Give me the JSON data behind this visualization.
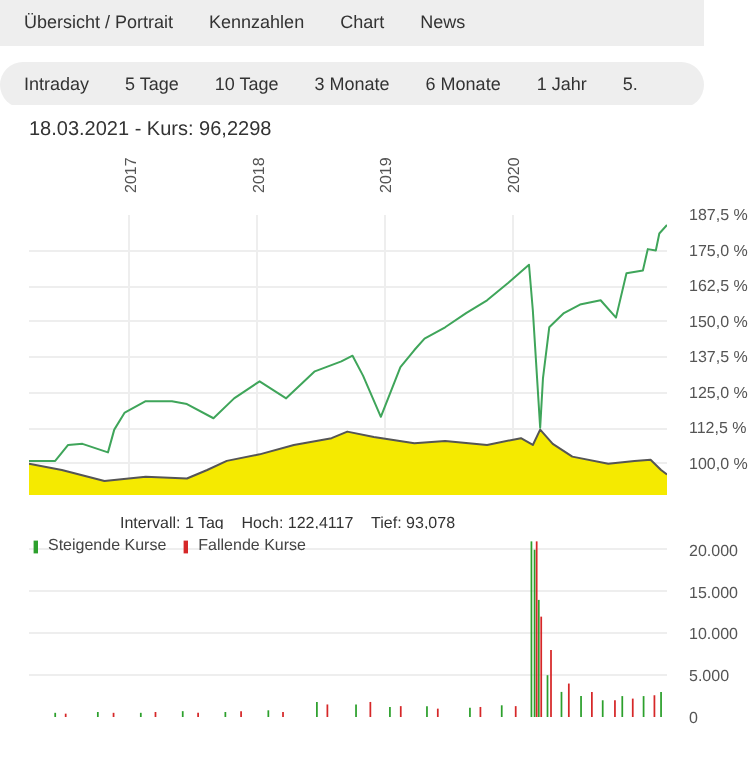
{
  "chart_data": [
    {
      "type": "line",
      "title": "18.03.2021 - Kurs: 96,2298",
      "annotations": [
        "Übersicht / Portrait",
        "Kennzahlen",
        "Chart",
        "News",
        "Intraday",
        "5 Tage",
        "10 Tage",
        "3 Monate",
        "6 Monate",
        "1 Jahr",
        "5."
      ],
      "xlim": [
        "2016-03-18",
        "2021-03-18"
      ],
      "xticks": [
        {
          "value": "2017-01-01",
          "label": "2017"
        },
        {
          "value": "2018-01-01",
          "label": "2018"
        },
        {
          "value": "2019-01-01",
          "label": "2019"
        },
        {
          "value": "2020-01-01",
          "label": "2020"
        }
      ],
      "ylim": [
        89,
        187.5
      ],
      "yticks": [
        {
          "value": 100,
          "label": "100,0 %"
        },
        {
          "value": 112.5,
          "label": "112,5 %"
        },
        {
          "value": 125,
          "label": "125,0 %"
        },
        {
          "value": 137.5,
          "label": "137,5 %"
        },
        {
          "value": 150,
          "label": "150,0 %"
        },
        {
          "value": 162.5,
          "label": "162,5 %"
        },
        {
          "value": 175,
          "label": "175,0 %"
        },
        {
          "value": 187.5,
          "label": "187,5 %"
        }
      ],
      "grid": true,
      "series": [
        {
          "type": "area",
          "color": "#f5ea00",
          "x": [
            "2016-03-18",
            "2016-06-20",
            "2016-10-20",
            "2017-02-15",
            "2017-06-13",
            "2017-08-10",
            "2017-10-05",
            "2018-01-07",
            "2018-04-15",
            "2018-08-01",
            "2018-09-15",
            "2018-11-30",
            "2019-03-26",
            "2019-06-22",
            "2019-10-20",
            "2020-01-25",
            "2020-02-28",
            "2020-03-20",
            "2020-04-25",
            "2020-06-20",
            "2020-10-01",
            "2020-12-15",
            "2021-01-30",
            "2021-03-01",
            "2021-03-18"
          ],
          "values": [
            100,
            97.8,
            93.9,
            95.4,
            94.8,
            97.8,
            101,
            103.3,
            106.6,
            109,
            111.3,
            109.4,
            107.2,
            108,
            106.6,
            109,
            106.6,
            112,
            107,
            102.5,
            100,
            101,
            101.4,
            97.8,
            96.2
          ]
        },
        {
          "type": "line",
          "color": "#3fa55a",
          "x": [
            "2016-03-18",
            "2016-06-01",
            "2016-07-08",
            "2016-08-18",
            "2016-10-30",
            "2016-11-17",
            "2016-12-17",
            "2017-02-15",
            "2017-05-01",
            "2017-06-13",
            "2017-08-28",
            "2017-10-26",
            "2018-01-07",
            "2018-03-24",
            "2018-06-14",
            "2018-08-29",
            "2018-09-30",
            "2018-10-30",
            "2018-12-20",
            "2019-02-14",
            "2019-03-26",
            "2019-04-24",
            "2019-06-22",
            "2019-08-21",
            "2019-10-20",
            "2019-12-20",
            "2020-02-17",
            "2020-02-28",
            "2020-03-20",
            "2020-03-28",
            "2020-04-15",
            "2020-05-27",
            "2020-07-12",
            "2020-09-09",
            "2020-10-23",
            "2020-11-22",
            "2021-01-08",
            "2021-01-22",
            "2021-02-14",
            "2021-02-24",
            "2021-03-18"
          ],
          "values": [
            101,
            101,
            106.6,
            107,
            104,
            112,
            118,
            122,
            122,
            121,
            116,
            123,
            129,
            123,
            132.5,
            136,
            138,
            131,
            116.5,
            134,
            140,
            144,
            148,
            153,
            157.5,
            163.7,
            170,
            154,
            112.7,
            130,
            148,
            153,
            156,
            157.5,
            151.4,
            167,
            168,
            175.5,
            175,
            181,
            184
          ]
        }
      ]
    },
    {
      "type": "bar",
      "annotations": [
        "Intervall: 1 Tag",
        "Hoch: 122,4117",
        "Tief: 93,078"
      ],
      "xlim": [
        "2016-03-18",
        "2021-03-18"
      ],
      "ylim": [
        0,
        22000
      ],
      "yticks": [
        0,
        {
          "value": 5000,
          "label": "5.000"
        },
        {
          "value": 10000,
          "label": "10.000"
        },
        {
          "value": 15000,
          "label": "15.000"
        },
        {
          "value": 20000,
          "label": "20.000"
        }
      ],
      "tick_labels": "y",
      "grid": "y",
      "legend": "top",
      "series": [
        {
          "name": "Steigende Kurse",
          "color": "#2ca02c",
          "x": [
            "2016-06-01",
            "2016-10-01",
            "2017-02-01",
            "2017-06-01",
            "2017-10-01",
            "2018-02-01",
            "2018-06-20",
            "2018-10-10",
            "2019-01-15",
            "2019-05-01",
            "2019-09-01",
            "2019-12-01",
            "2020-02-24",
            "2020-03-04",
            "2020-03-16",
            "2020-04-10",
            "2020-05-20",
            "2020-07-15",
            "2020-09-15",
            "2020-11-10",
            "2021-01-10",
            "2021-03-01"
          ],
          "values": [
            500,
            600,
            500,
            700,
            600,
            800,
            1800,
            1500,
            1200,
            1300,
            1100,
            1400,
            21000,
            20000,
            14000,
            5000,
            3000,
            2500,
            2000,
            2500,
            2500,
            3000
          ]
        },
        {
          "name": "Fallende Kurse",
          "color": "#d62728",
          "x": [
            "2016-07-01",
            "2016-11-15",
            "2017-03-15",
            "2017-07-15",
            "2017-11-15",
            "2018-03-15",
            "2018-07-20",
            "2018-11-20",
            "2019-02-15",
            "2019-06-01",
            "2019-10-01",
            "2020-01-10",
            "2020-03-10",
            "2020-03-23",
            "2020-04-20",
            "2020-06-10",
            "2020-08-15",
            "2020-10-20",
            "2020-12-10",
            "2021-02-10"
          ],
          "values": [
            400,
            500,
            600,
            500,
            700,
            600,
            1500,
            1800,
            1300,
            1000,
            1200,
            1300,
            21000,
            12000,
            8000,
            4000,
            3000,
            2000,
            2200,
            2600
          ]
        }
      ]
    }
  ]
}
